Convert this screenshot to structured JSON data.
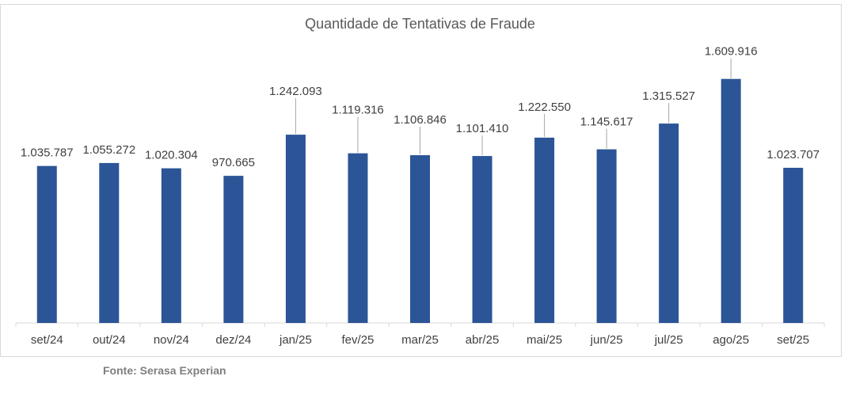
{
  "chart_data": {
    "type": "bar",
    "title": "Quantidade de Tentativas de Fraude",
    "xlabel": "",
    "ylabel": "",
    "categories": [
      "set/24",
      "out/24",
      "nov/24",
      "dez/24",
      "jan/25",
      "fev/25",
      "mar/25",
      "abr/25",
      "mai/25",
      "jun/25",
      "jul/25",
      "ago/25",
      "set/25"
    ],
    "values": [
      1035787,
      1055272,
      1020304,
      970665,
      1242093,
      1119316,
      1106846,
      1101410,
      1222550,
      1145617,
      1315527,
      1609916,
      1023707
    ],
    "data_labels": [
      "1.035.787",
      "1.055.272",
      "1.020.304",
      "970.665",
      "1.242.093",
      "1.119.316",
      "1.106.846",
      "1.101.410",
      "1.222.550",
      "1.145.617",
      "1.315.527",
      "1.609.916",
      "1.023.707"
    ],
    "ylim": [
      0,
      1800000
    ],
    "grid": false,
    "legend": "none",
    "bar_color": "#2b5597"
  },
  "source": "Fonte: Serasa Experian"
}
